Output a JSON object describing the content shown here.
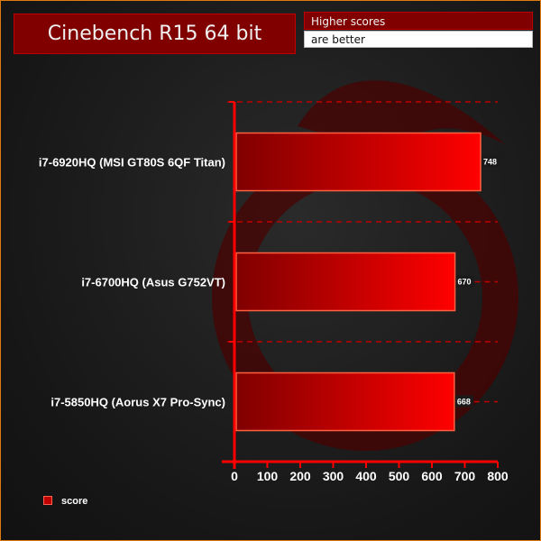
{
  "chart_data": {
    "type": "bar",
    "orientation": "horizontal",
    "title": "Cinebench R15 64 bit",
    "note": [
      "Higher scores",
      "are better"
    ],
    "categories": [
      "i7-6920HQ (MSI GT80S 6QF Titan)",
      "i7-6700HQ (Asus G752VT)",
      "i7-5850HQ (Aorus X7 Pro-Sync)"
    ],
    "series": [
      {
        "name": "score",
        "values": [
          748,
          670,
          668
        ]
      }
    ],
    "xlim": [
      0,
      800
    ],
    "xticks": [
      "0",
      "100",
      "200",
      "300",
      "400",
      "500",
      "600",
      "700",
      "800"
    ],
    "legend": "bottom-left",
    "grid": false,
    "colors": {
      "bar": "#e00000",
      "bar_dark": "#800000",
      "axis": "#ff0000",
      "background": "#1a1a1a",
      "border": "#e07a10"
    }
  }
}
